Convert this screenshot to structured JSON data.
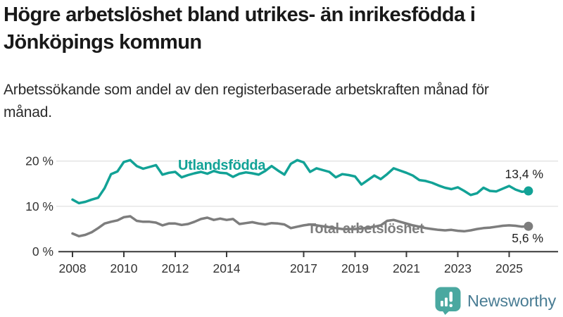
{
  "header": {
    "title": "Högre arbetslöshet bland utrikes- än inrikesfödda i Jönköpings kommun",
    "subtitle": "Arbetssökande som andel av den registerbaserade arbetskraften månad för månad."
  },
  "chart_data": {
    "type": "line",
    "title": "Högre arbetslöshet bland utrikes- än inrikesfödda i Jönköpings kommun",
    "subtitle": "Arbetssökande som andel av den registerbaserade arbetskraften månad för månad.",
    "ylabel": "",
    "xlabel": "",
    "ylim": [
      0,
      21.5
    ],
    "x_range": [
      2008,
      2025.75
    ],
    "grid": true,
    "x_start": 2008,
    "x_step": 0.25,
    "x_ticks": [
      {
        "year": 2008,
        "label": "2008"
      },
      {
        "year": 2010,
        "label": "2010"
      },
      {
        "year": 2012,
        "label": "2012"
      },
      {
        "year": 2014,
        "label": "2014"
      },
      {
        "year": 2017,
        "label": "2017"
      },
      {
        "year": 2019,
        "label": "2019"
      },
      {
        "year": 2021,
        "label": "2021"
      },
      {
        "year": 2023,
        "label": "2023"
      },
      {
        "year": 2025,
        "label": "2025"
      }
    ],
    "y_ticks": [
      {
        "value": 0,
        "label": "0 %"
      },
      {
        "value": 10,
        "label": "10 %"
      },
      {
        "value": 20,
        "label": "20 %"
      }
    ],
    "series": [
      {
        "name": "Utlandsfödda",
        "color": "#12a296",
        "end_label": "13,4 %",
        "end_value": 13.4,
        "values": [
          11.5,
          10.7,
          11.0,
          11.5,
          11.9,
          14.0,
          17.1,
          17.7,
          19.8,
          20.2,
          18.9,
          18.3,
          18.7,
          19.1,
          17.0,
          17.4,
          17.6,
          16.4,
          16.9,
          17.3,
          17.6,
          17.2,
          17.8,
          17.4,
          17.3,
          16.5,
          17.2,
          17.5,
          17.3,
          17.0,
          17.8,
          18.9,
          17.9,
          17.0,
          19.4,
          20.2,
          19.7,
          17.6,
          18.4,
          18.0,
          17.6,
          16.4,
          17.1,
          16.9,
          16.6,
          14.8,
          15.8,
          16.8,
          16.0,
          17.1,
          18.4,
          17.9,
          17.4,
          16.8,
          15.8,
          15.6,
          15.2,
          14.6,
          14.1,
          13.8,
          14.2,
          13.4,
          12.5,
          12.9,
          14.1,
          13.4,
          13.3,
          13.9,
          14.5,
          13.7,
          13.2,
          13.4
        ]
      },
      {
        "name": "Total arbetslöshet",
        "color": "#7d7d7d",
        "end_label": "5,6 %",
        "end_value": 5.6,
        "values": [
          4.0,
          3.4,
          3.7,
          4.3,
          5.2,
          6.2,
          6.6,
          6.9,
          7.6,
          7.8,
          6.8,
          6.6,
          6.6,
          6.4,
          5.8,
          6.2,
          6.2,
          5.9,
          6.1,
          6.6,
          7.2,
          7.5,
          7.0,
          7.3,
          7.0,
          7.2,
          6.1,
          6.3,
          6.5,
          6.2,
          6.0,
          6.3,
          6.2,
          6.0,
          5.2,
          5.5,
          5.8,
          6.0,
          5.8,
          5.6,
          5.4,
          5.2,
          5.0,
          5.0,
          5.0,
          5.1,
          5.3,
          5.5,
          5.8,
          6.8,
          7.0,
          6.6,
          6.2,
          5.8,
          5.5,
          5.2,
          5.0,
          4.8,
          4.7,
          4.8,
          4.6,
          4.5,
          4.7,
          5.0,
          5.2,
          5.3,
          5.5,
          5.7,
          5.8,
          5.7,
          5.5,
          5.6
        ]
      }
    ]
  },
  "branding": {
    "logo_text": "Newsworthy",
    "logo_text_color": "#4a7d94",
    "icon_color": "#4aa8a0"
  }
}
